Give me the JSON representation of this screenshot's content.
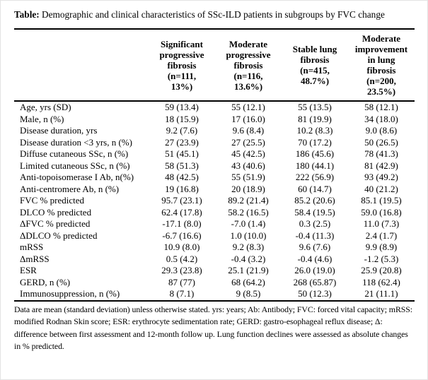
{
  "caption": {
    "label": "Table:",
    "text": " Demographic and clinical characteristics of SSc-ILD patients in subgroups by FVC change"
  },
  "table": {
    "columns": [
      "Significant\nprogressive\nfibrosis\n(n=111,\n13%)",
      "Moderate\nprogressive\nfibrosis\n(n=116,\n13.6%)",
      "Stable lung\nfibrosis\n(n=415,\n48.7%)",
      "Moderate\nimprovement\nin lung\nfibrosis\n(n=200,\n23.5%)"
    ],
    "rows": [
      {
        "label": "Age, yrs (SD)",
        "values": [
          "59 (13.4)",
          "55 (12.1)",
          "55 (13.5)",
          "58 (12.1)"
        ]
      },
      {
        "label": "Male, n (%)",
        "values": [
          "18 (15.9)",
          "17 (16.0)",
          "81 (19.9)",
          "34 (18.0)"
        ]
      },
      {
        "label": "Disease duration, yrs",
        "values": [
          "9.2 (7.6)",
          "9.6 (8.4)",
          "10.2 (8.3)",
          "9.0 (8.6)"
        ]
      },
      {
        "label": "Disease duration <3 yrs, n (%)",
        "values": [
          "27 (23.9)",
          "27 (25.5)",
          "70 (17.2)",
          "50 (26.5)"
        ]
      },
      {
        "label": "Diffuse cutaneous SSc, n (%)",
        "values": [
          "51 (45.1)",
          "45 (42.5)",
          "186 (45.6)",
          "78 (41.3)"
        ]
      },
      {
        "label": "Limited cutaneous SSc, n (%)",
        "values": [
          "58 (51.3)",
          "43 (40.6)",
          "180 (44.1)",
          "81 (42.9)"
        ]
      },
      {
        "label": "Anti-topoisomerase I Ab, n(%)",
        "values": [
          "48 (42.5)",
          "55 (51.9)",
          "222 (56.9)",
          "93 (49.2)"
        ]
      },
      {
        "label": "Anti-centromere Ab, n (%)",
        "values": [
          "19 (16.8)",
          "20 (18.9)",
          "60 (14.7)",
          "40 (21.2)"
        ]
      },
      {
        "label": "FVC % predicted",
        "values": [
          "95.7 (23.1)",
          "89.2 (21.4)",
          "85.2 (20.6)",
          "85.1 (19.5)"
        ]
      },
      {
        "label": "DLCO % predicted",
        "values": [
          "62.4 (17.8)",
          "58.2 (16.5)",
          "58.4 (19.5)",
          "59.0 (16.8)"
        ]
      },
      {
        "label": "ΔFVC % predicted",
        "values": [
          "-17.1 (8.0)",
          "-7.0 (1.4)",
          "0.3 (2.5)",
          "11.0 (7.3)"
        ]
      },
      {
        "label": "ΔDLCO % predicted",
        "values": [
          "-6.7 (16.6)",
          "1.0 (10.0)",
          "-0.4 (11.3)",
          "2.4 (1.7)"
        ]
      },
      {
        "label": "mRSS",
        "values": [
          "10.9 (8.0)",
          "9.2 (8.3)",
          "9.6 (7.6)",
          "9.9 (8.9)"
        ]
      },
      {
        "label": "ΔmRSS",
        "values": [
          "0.5 (4.2)",
          "-0.4 (3.2)",
          "-0.4 (4.6)",
          "-1.2 (5.3)"
        ]
      },
      {
        "label": "ESR",
        "values": [
          "29.3 (23.8)",
          "25.1 (21.9)",
          "26.0 (19.0)",
          "25.9 (20.8)"
        ]
      },
      {
        "label": "GERD, n (%)",
        "values": [
          "87 (77)",
          "68 (64.2)",
          "268 (65.87)",
          "118 (62.4)"
        ]
      },
      {
        "label": "Immunosuppression, n (%)",
        "values": [
          "8 (7.1)",
          "9 (8.5)",
          "50 (12.3)",
          "21 (11.1)"
        ]
      }
    ]
  },
  "footnote": "Data are mean (standard deviation) unless otherwise stated. yrs: years; Ab: Antibody; FVC: forced vital capacity; mRSS: modified Rodnan Skin score; ESR: erythrocyte sedimentation rate; GERD: gastro-esophageal reflux disease; Δ: difference between first assessment and 12-month follow up. Lung function declines were assessed as absolute changes in % predicted."
}
